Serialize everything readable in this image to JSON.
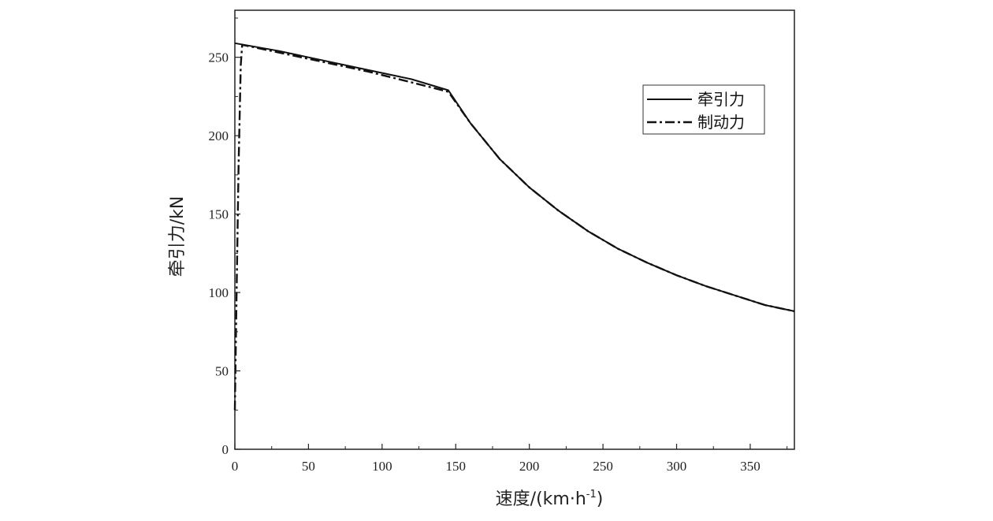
{
  "chart_data": {
    "type": "line",
    "xlabel": "速度/(km·h",
    "xlabel_sup": "-1",
    "xlabel_close": ")",
    "ylabel": "牵引力/kN",
    "xlim": [
      0,
      380
    ],
    "ylim": [
      0,
      280
    ],
    "x_ticks": [
      0,
      50,
      100,
      150,
      200,
      250,
      300,
      350
    ],
    "x_tick_labels": [
      "0",
      "50",
      "100",
      "150",
      "200",
      "250",
      "300",
      "350"
    ],
    "y_ticks": [
      0,
      50,
      100,
      150,
      200,
      250
    ],
    "y_tick_labels": [
      "0",
      "50",
      "100",
      "150",
      "200",
      "250"
    ],
    "grid": false,
    "legend_position": "top-right",
    "series": [
      {
        "name": "牵引力",
        "style": "solid",
        "color": "#111111",
        "x": [
          0,
          30,
          60,
          90,
          120,
          145,
          160,
          180,
          200,
          220,
          240,
          260,
          280,
          300,
          320,
          340,
          360,
          380
        ],
        "y": [
          259,
          254,
          248,
          242,
          236,
          229,
          208,
          185,
          167,
          152,
          139,
          128,
          119,
          111,
          104,
          98,
          92,
          88
        ]
      },
      {
        "name": "制动力",
        "style": "dashdot",
        "color": "#111111",
        "x": [
          0,
          1,
          2.5,
          4,
          5,
          30,
          60,
          90,
          120,
          145,
          160,
          180,
          200,
          220,
          240,
          260,
          280,
          300,
          320,
          340,
          360,
          380
        ],
        "y": [
          25,
          90,
          180,
          245,
          258,
          253,
          247,
          241,
          234,
          228,
          208,
          185,
          167,
          152,
          139,
          128,
          119,
          111,
          104,
          98,
          92,
          88
        ]
      }
    ]
  }
}
